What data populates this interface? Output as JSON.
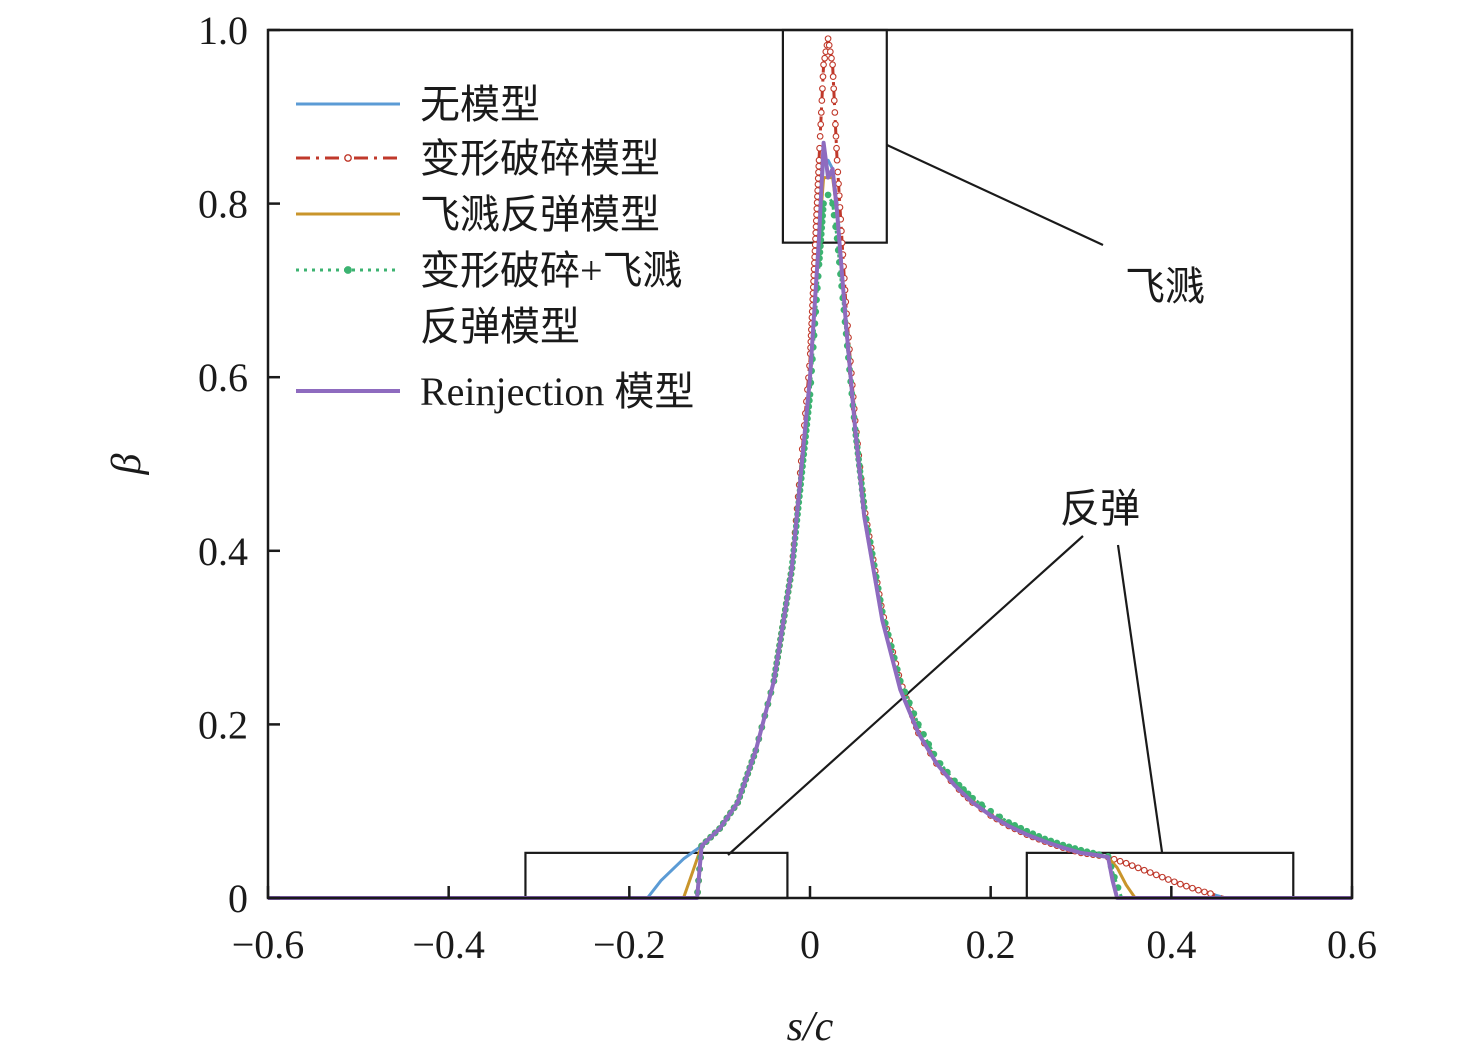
{
  "chart_data": {
    "type": "line",
    "title": "",
    "xlabel": "s/c",
    "ylabel": "β",
    "xlim": [
      -0.6,
      0.6
    ],
    "ylim": [
      0,
      1.0
    ],
    "xticks": [
      -0.6,
      -0.4,
      -0.2,
      0,
      0.2,
      0.4,
      0.6
    ],
    "xtick_labels": [
      "−0.6",
      "−0.4",
      "−0.2",
      "0",
      "0.2",
      "0.4",
      "0.6"
    ],
    "yticks": [
      0,
      0.2,
      0.4,
      0.6,
      0.8,
      1.0
    ],
    "ytick_labels": [
      "0",
      "0.2",
      "0.4",
      "0.6",
      "0.8",
      "1.0"
    ],
    "grid": false,
    "legend_position": "top-left",
    "series": [
      {
        "name": "无模型",
        "color": "#5b9bd5",
        "style": "solid",
        "x": [
          -0.6,
          -0.18,
          -0.165,
          -0.15,
          -0.14,
          -0.12,
          -0.1,
          -0.08,
          -0.06,
          -0.04,
          -0.02,
          0.0,
          0.01,
          0.015,
          0.02,
          0.025,
          0.03,
          0.04,
          0.05,
          0.06,
          0.08,
          0.1,
          0.12,
          0.14,
          0.16,
          0.18,
          0.2,
          0.22,
          0.24,
          0.26,
          0.28,
          0.3,
          0.32,
          0.33,
          0.35,
          0.37,
          0.39,
          0.41,
          0.43,
          0.45,
          0.46,
          0.6
        ],
        "y": [
          0,
          0,
          0.02,
          0.035,
          0.045,
          0.06,
          0.08,
          0.11,
          0.17,
          0.25,
          0.38,
          0.6,
          0.76,
          0.85,
          0.85,
          0.84,
          0.8,
          0.66,
          0.54,
          0.44,
          0.32,
          0.24,
          0.19,
          0.155,
          0.13,
          0.11,
          0.095,
          0.083,
          0.073,
          0.065,
          0.058,
          0.052,
          0.049,
          0.047,
          0.04,
          0.032,
          0.024,
          0.016,
          0.009,
          0.003,
          0,
          0
        ]
      },
      {
        "name": "变形破碎模型",
        "color": "#c0392b",
        "style": "dashdot-circle",
        "x": [
          -0.6,
          -0.125,
          -0.12,
          -0.1,
          -0.08,
          -0.06,
          -0.04,
          -0.02,
          0.0,
          0.01,
          0.015,
          0.02,
          0.025,
          0.03,
          0.04,
          0.05,
          0.06,
          0.08,
          0.1,
          0.12,
          0.14,
          0.16,
          0.18,
          0.2,
          0.22,
          0.24,
          0.26,
          0.28,
          0.3,
          0.32,
          0.33,
          0.35,
          0.37,
          0.39,
          0.41,
          0.43,
          0.45,
          0.46,
          0.6
        ],
        "y": [
          0,
          0,
          0.06,
          0.08,
          0.11,
          0.17,
          0.25,
          0.38,
          0.62,
          0.85,
          0.96,
          0.99,
          0.96,
          0.85,
          0.68,
          0.55,
          0.45,
          0.33,
          0.25,
          0.19,
          0.155,
          0.13,
          0.11,
          0.095,
          0.083,
          0.073,
          0.065,
          0.058,
          0.052,
          0.049,
          0.047,
          0.04,
          0.032,
          0.024,
          0.016,
          0.009,
          0.003,
          0,
          0
        ]
      },
      {
        "name": "飞溅反弹模型",
        "color": "#c9952b",
        "style": "solid",
        "x": [
          -0.6,
          -0.14,
          -0.13,
          -0.12,
          -0.1,
          -0.08,
          -0.06,
          -0.04,
          -0.02,
          0.0,
          0.01,
          0.015,
          0.02,
          0.025,
          0.03,
          0.04,
          0.05,
          0.06,
          0.08,
          0.1,
          0.12,
          0.14,
          0.16,
          0.18,
          0.2,
          0.22,
          0.24,
          0.26,
          0.28,
          0.3,
          0.32,
          0.33,
          0.34,
          0.35,
          0.36,
          0.6
        ],
        "y": [
          0,
          0,
          0.03,
          0.06,
          0.08,
          0.11,
          0.17,
          0.25,
          0.38,
          0.6,
          0.76,
          0.83,
          0.83,
          0.83,
          0.79,
          0.66,
          0.54,
          0.44,
          0.32,
          0.24,
          0.19,
          0.155,
          0.13,
          0.11,
          0.095,
          0.083,
          0.073,
          0.065,
          0.058,
          0.052,
          0.049,
          0.047,
          0.035,
          0.015,
          0,
          0
        ]
      },
      {
        "name": "变形破碎+飞溅反弹模型",
        "color": "#3cb371",
        "style": "dotted-marker",
        "x": [
          -0.6,
          -0.125,
          -0.12,
          -0.1,
          -0.08,
          -0.06,
          -0.04,
          -0.02,
          0.0,
          0.01,
          0.015,
          0.02,
          0.025,
          0.03,
          0.04,
          0.05,
          0.06,
          0.08,
          0.1,
          0.12,
          0.14,
          0.16,
          0.18,
          0.2,
          0.22,
          0.24,
          0.26,
          0.28,
          0.3,
          0.32,
          0.33,
          0.335,
          0.345,
          0.6
        ],
        "y": [
          0,
          0,
          0.06,
          0.08,
          0.11,
          0.17,
          0.25,
          0.38,
          0.58,
          0.73,
          0.8,
          0.81,
          0.8,
          0.76,
          0.65,
          0.54,
          0.45,
          0.33,
          0.25,
          0.2,
          0.16,
          0.135,
          0.115,
          0.1,
          0.087,
          0.077,
          0.068,
          0.061,
          0.055,
          0.05,
          0.048,
          0.03,
          0,
          0
        ]
      },
      {
        "name": "Reinjection 模型",
        "color": "#8e6bbf",
        "style": "solid-thick",
        "x": [
          -0.6,
          -0.125,
          -0.12,
          -0.1,
          -0.08,
          -0.06,
          -0.04,
          -0.02,
          0.0,
          0.01,
          0.015,
          0.02,
          0.025,
          0.03,
          0.04,
          0.05,
          0.06,
          0.08,
          0.1,
          0.12,
          0.14,
          0.16,
          0.18,
          0.2,
          0.22,
          0.24,
          0.26,
          0.28,
          0.3,
          0.32,
          0.33,
          0.335,
          0.34,
          0.6
        ],
        "y": [
          0,
          0,
          0.06,
          0.08,
          0.11,
          0.17,
          0.25,
          0.38,
          0.6,
          0.76,
          0.87,
          0.83,
          0.84,
          0.79,
          0.66,
          0.54,
          0.44,
          0.32,
          0.24,
          0.19,
          0.155,
          0.13,
          0.11,
          0.095,
          0.083,
          0.073,
          0.065,
          0.058,
          0.052,
          0.049,
          0.047,
          0.02,
          0,
          0
        ]
      }
    ],
    "legend_entries": [
      "无模型",
      "变形破碎模型",
      "飞溅反弹模型",
      "变形破碎+飞溅",
      "反弹模型",
      "Reinjection 模型"
    ],
    "annotations": [
      {
        "text": "飞溅",
        "boxes": [
          {
            "x": [
              -0.03,
              0.085
            ],
            "y": [
              0.755,
              1.0
            ]
          }
        ],
        "anchor": [
          0.32,
          0.76
        ]
      },
      {
        "text": "反弹",
        "boxes": [
          {
            "x": [
              -0.315,
              -0.025
            ],
            "y": [
              0,
              0.052
            ]
          },
          {
            "x": [
              0.24,
              0.535
            ],
            "y": [
              0,
              0.052
            ]
          }
        ],
        "anchor": [
          0.345,
          0.4
        ]
      }
    ]
  }
}
